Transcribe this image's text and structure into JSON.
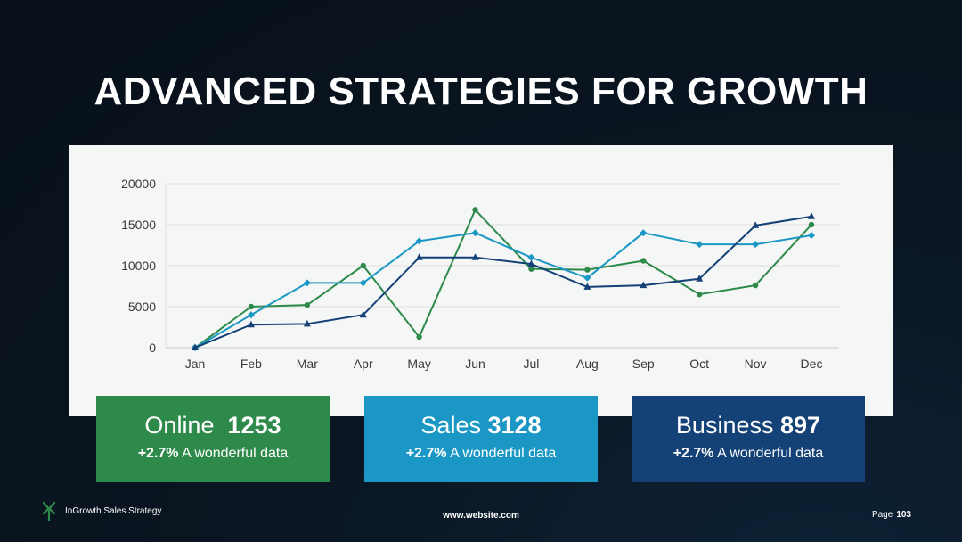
{
  "page": {
    "title": "ADVANCED STRATEGIES FOR GROWTH"
  },
  "chart_data": {
    "type": "line",
    "categories": [
      "Jan",
      "Feb",
      "Mar",
      "Apr",
      "May",
      "Jun",
      "Jul",
      "Aug",
      "Sep",
      "Oct",
      "Nov",
      "Dec"
    ],
    "y_ticks": [
      "0",
      "5000",
      "10000",
      "15000",
      "20000"
    ],
    "ylim": [
      0,
      20000
    ],
    "grid": true,
    "legend": "none",
    "series": [
      {
        "color": "#2e8a4a",
        "marker": "circle",
        "values": [
          0,
          5000,
          5200,
          10000,
          1300,
          16800,
          9600,
          9500,
          10600,
          6500,
          7600,
          15000
        ]
      },
      {
        "color": "#1a97c4",
        "marker": "diamond",
        "values": [
          0,
          4000,
          7900,
          7900,
          13000,
          14000,
          11000,
          8500,
          14000,
          12600,
          12600,
          13700
        ]
      },
      {
        "color": "#144277",
        "marker": "triangle",
        "values": [
          0,
          2800,
          2900,
          4000,
          11000,
          11000,
          10200,
          7400,
          7600,
          8400,
          14900,
          16000
        ]
      }
    ]
  },
  "cards": [
    {
      "label": "Online",
      "value": "1253",
      "pct": "+2.7%",
      "desc": "A wonderful data",
      "color": "#2e8a4a"
    },
    {
      "label": "Sales",
      "value": "3128",
      "pct": "+2.7%",
      "desc": "A wonderful data",
      "color": "#1a97c4"
    },
    {
      "label": "Business",
      "value": "897",
      "pct": "+2.7%",
      "desc": "A wonderful data",
      "color": "#144277"
    }
  ],
  "footer": {
    "logo_icon": "growth-arrows-icon",
    "logo_color": "#2e8a4a",
    "brand": "InGrowth Sales Strategy.",
    "website": "www.website.com",
    "page_label": "Page",
    "page_number": "103"
  }
}
